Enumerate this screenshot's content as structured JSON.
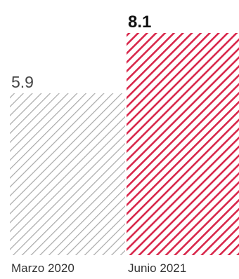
{
  "chart_data": {
    "type": "bar",
    "categories": [
      "Marzo 2020",
      "Junio 2021"
    ],
    "values": [
      5.9,
      8.1
    ],
    "value_labels": [
      "5.9",
      "8.1"
    ],
    "ylim": [
      0,
      8.1
    ],
    "grid": false,
    "bar_style": "diagonal-hatch",
    "colors": {
      "bar_1": "#a8a8a8",
      "bar_2": "#d8264a",
      "highlight_label": "#111111",
      "normal_label": "#444444"
    }
  }
}
